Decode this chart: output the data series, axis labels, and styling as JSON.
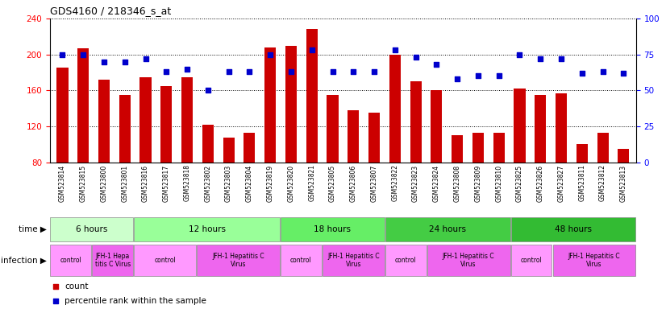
{
  "title": "GDS4160 / 218346_s_at",
  "samples": [
    "GSM523814",
    "GSM523815",
    "GSM523800",
    "GSM523801",
    "GSM523816",
    "GSM523817",
    "GSM523818",
    "GSM523802",
    "GSM523803",
    "GSM523804",
    "GSM523819",
    "GSM523820",
    "GSM523821",
    "GSM523805",
    "GSM523806",
    "GSM523807",
    "GSM523822",
    "GSM523823",
    "GSM523824",
    "GSM523808",
    "GSM523809",
    "GSM523810",
    "GSM523825",
    "GSM523826",
    "GSM523827",
    "GSM523811",
    "GSM523812",
    "GSM523813"
  ],
  "counts": [
    185,
    207,
    172,
    155,
    175,
    165,
    175,
    122,
    107,
    113,
    208,
    210,
    228,
    155,
    138,
    135,
    200,
    170,
    160,
    110,
    113,
    113,
    162,
    155,
    157,
    100,
    113,
    95
  ],
  "percentiles": [
    75,
    75,
    70,
    70,
    72,
    63,
    65,
    50,
    63,
    63,
    75,
    63,
    78,
    63,
    63,
    63,
    78,
    73,
    68,
    58,
    60,
    60,
    75,
    72,
    72,
    62,
    63,
    62
  ],
  "bar_color": "#cc0000",
  "dot_color": "#0000cc",
  "ylim_left": [
    80,
    240
  ],
  "ylim_right": [
    0,
    100
  ],
  "yticks_left": [
    80,
    120,
    160,
    200,
    240
  ],
  "yticks_right": [
    0,
    25,
    50,
    75,
    100
  ],
  "time_groups": [
    {
      "label": "6 hours",
      "start": 0,
      "end": 4,
      "color": "#ccffcc"
    },
    {
      "label": "12 hours",
      "start": 4,
      "end": 11,
      "color": "#99ff99"
    },
    {
      "label": "18 hours",
      "start": 11,
      "end": 16,
      "color": "#66ee66"
    },
    {
      "label": "24 hours",
      "start": 16,
      "end": 22,
      "color": "#44cc44"
    },
    {
      "label": "48 hours",
      "start": 22,
      "end": 28,
      "color": "#33bb33"
    }
  ],
  "infection_groups": [
    {
      "label": "control",
      "start": 0,
      "end": 2,
      "color": "#ff99ff"
    },
    {
      "label": "JFH-1 Hepa\ntitis C Virus",
      "start": 2,
      "end": 4,
      "color": "#ee66ee"
    },
    {
      "label": "control",
      "start": 4,
      "end": 7,
      "color": "#ff99ff"
    },
    {
      "label": "JFH-1 Hepatitis C\nVirus",
      "start": 7,
      "end": 11,
      "color": "#ee66ee"
    },
    {
      "label": "control",
      "start": 11,
      "end": 13,
      "color": "#ff99ff"
    },
    {
      "label": "JFH-1 Hepatitis C\nVirus",
      "start": 13,
      "end": 16,
      "color": "#ee66ee"
    },
    {
      "label": "control",
      "start": 16,
      "end": 18,
      "color": "#ff99ff"
    },
    {
      "label": "JFH-1 Hepatitis C\nVirus",
      "start": 18,
      "end": 22,
      "color": "#ee66ee"
    },
    {
      "label": "control",
      "start": 22,
      "end": 24,
      "color": "#ff99ff"
    },
    {
      "label": "JFH-1 Hepatitis C\nVirus",
      "start": 24,
      "end": 28,
      "color": "#ee66ee"
    }
  ],
  "legend_count_color": "#cc0000",
  "legend_pct_color": "#0000cc",
  "fig_width": 8.26,
  "fig_height": 3.84,
  "fig_dpi": 100
}
